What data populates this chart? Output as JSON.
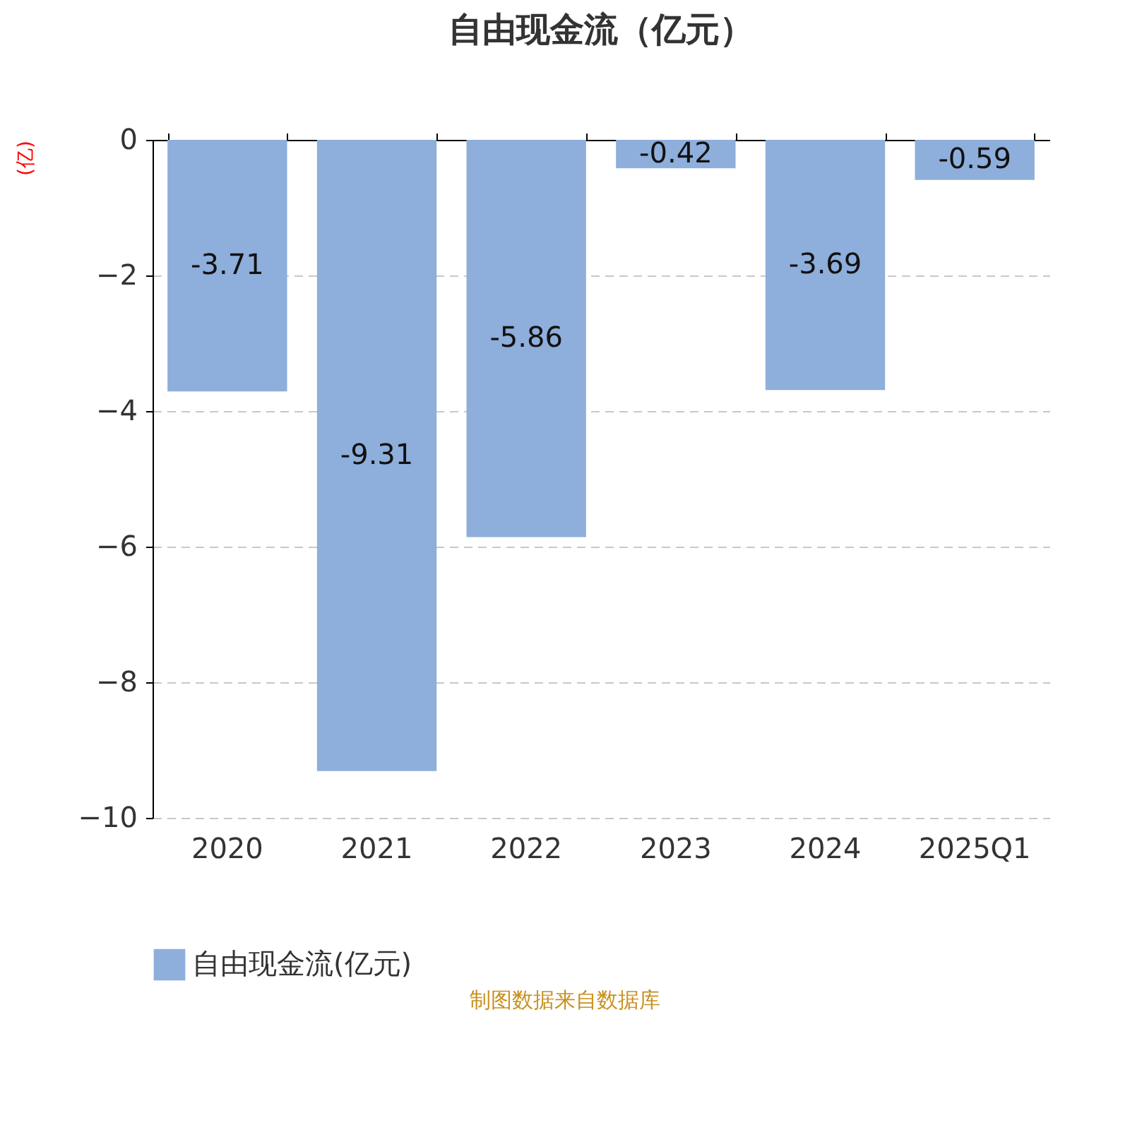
{
  "chart_data": {
    "type": "bar",
    "title": "自由现金流（亿元）",
    "ylabel": "(亿)",
    "categories": [
      "2020",
      "2021",
      "2022",
      "2023",
      "2024",
      "2025Q1"
    ],
    "series": [
      {
        "name": "自由现金流(亿元)",
        "color": "#8eaedb",
        "values": [
          -3.71,
          -9.31,
          -5.86,
          -0.42,
          -3.69,
          -0.59
        ]
      }
    ],
    "ylim": [
      -10,
      0
    ],
    "yticks": [
      -10,
      -8,
      -6,
      -4,
      -2,
      0
    ],
    "grid": "y",
    "legend": "bottom",
    "data_labels": true,
    "annotations": [
      "制图数据来自数据库"
    ]
  }
}
